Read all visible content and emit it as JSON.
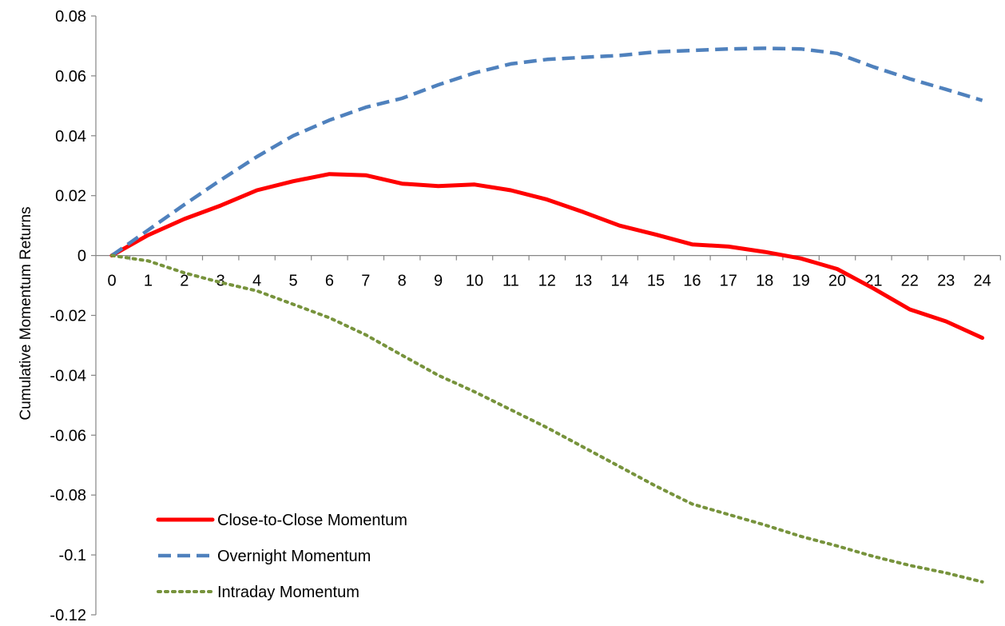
{
  "chart_data": {
    "type": "line",
    "title": "",
    "xlabel": "",
    "ylabel": "Cumulative Momentum Returns",
    "x": [
      0,
      1,
      2,
      3,
      4,
      5,
      6,
      7,
      8,
      9,
      10,
      11,
      12,
      13,
      14,
      15,
      16,
      17,
      18,
      19,
      20,
      21,
      22,
      23,
      24
    ],
    "xtick_labels": [
      "0",
      "1",
      "2",
      "3",
      "4",
      "5",
      "6",
      "7",
      "8",
      "9",
      "10",
      "11",
      "12",
      "13",
      "14",
      "15",
      "16",
      "17",
      "18",
      "19",
      "20",
      "21",
      "22",
      "23",
      "24"
    ],
    "ylim": [
      -0.12,
      0.08
    ],
    "yticks": [
      0.08,
      0.06,
      0.04,
      0.02,
      0,
      -0.02,
      -0.04,
      -0.06,
      -0.08,
      -0.1,
      -0.12
    ],
    "ytick_labels": [
      "0.08",
      "0.06",
      "0.04",
      "0.02",
      "0",
      "-0.02",
      "-0.04",
      "-0.06",
      "-0.08",
      "-0.1",
      "-0.12"
    ],
    "grid": false,
    "legend_position": "bottom-left",
    "series": [
      {
        "name": "Close-to-Close Momentum",
        "style": "solid",
        "color": "#FF0000",
        "values": [
          0,
          0.0068,
          0.0122,
          0.0167,
          0.0218,
          0.0248,
          0.0272,
          0.0268,
          0.024,
          0.0232,
          0.0237,
          0.0218,
          0.0187,
          0.0145,
          0.01,
          0.007,
          0.0037,
          0.003,
          0.0012,
          -0.001,
          -0.0045,
          -0.011,
          -0.018,
          -0.022,
          -0.0275
        ]
      },
      {
        "name": "Overnight Momentum",
        "style": "dashed",
        "color": "#4F81BD",
        "values": [
          0,
          0.0085,
          0.017,
          0.0252,
          0.033,
          0.04,
          0.0452,
          0.0495,
          0.0525,
          0.057,
          0.061,
          0.064,
          0.0655,
          0.0662,
          0.0668,
          0.068,
          0.0685,
          0.069,
          0.0692,
          0.069,
          0.0675,
          0.063,
          0.059,
          0.0555,
          0.0518
        ]
      },
      {
        "name": "Intraday Momentum",
        "style": "dotted",
        "color": "#77933C",
        "values": [
          0,
          -0.0018,
          -0.0058,
          -0.009,
          -0.0118,
          -0.0163,
          -0.0208,
          -0.0265,
          -0.0333,
          -0.04,
          -0.0455,
          -0.0515,
          -0.0575,
          -0.064,
          -0.0705,
          -0.077,
          -0.083,
          -0.0865,
          -0.09,
          -0.0938,
          -0.097,
          -0.1005,
          -0.1035,
          -0.106,
          -0.109
        ]
      }
    ]
  }
}
